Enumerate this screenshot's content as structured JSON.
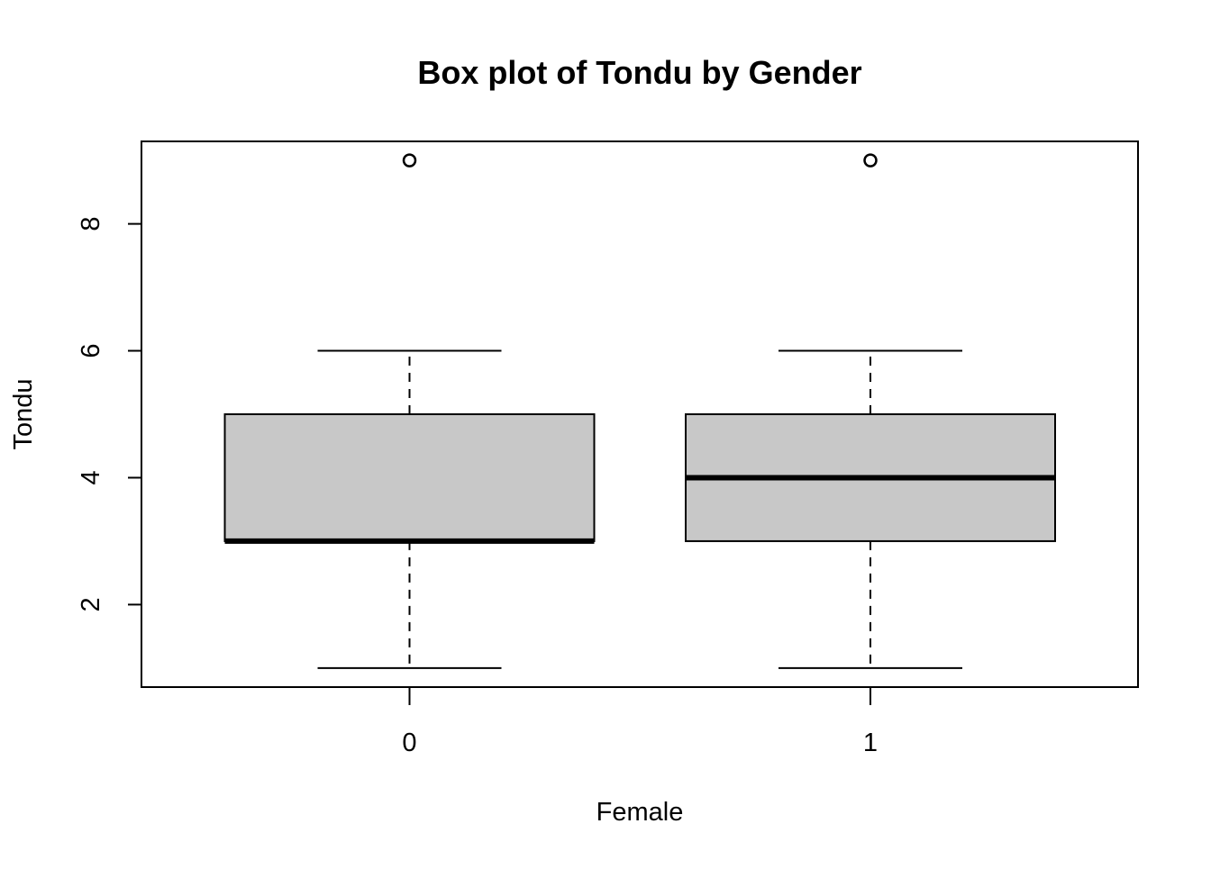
{
  "chart_data": {
    "type": "box",
    "title": "Box plot of Tondu by Gender",
    "xlabel": "Female",
    "ylabel": "Tondu",
    "categories": [
      "0",
      "1"
    ],
    "yticks": [
      2,
      4,
      6,
      8
    ],
    "ylim": [
      0.7,
      9.3
    ],
    "grid": false,
    "box_fill": "#c8c8c8",
    "line_color": "#000000",
    "boxes": [
      {
        "category": "0",
        "whisker_low": 1,
        "q1": 3,
        "median": 3,
        "q3": 5,
        "whisker_high": 6,
        "outliers": [
          9
        ]
      },
      {
        "category": "1",
        "whisker_low": 1,
        "q1": 3,
        "median": 4,
        "q3": 5,
        "whisker_high": 6,
        "outliers": [
          9
        ]
      }
    ]
  }
}
